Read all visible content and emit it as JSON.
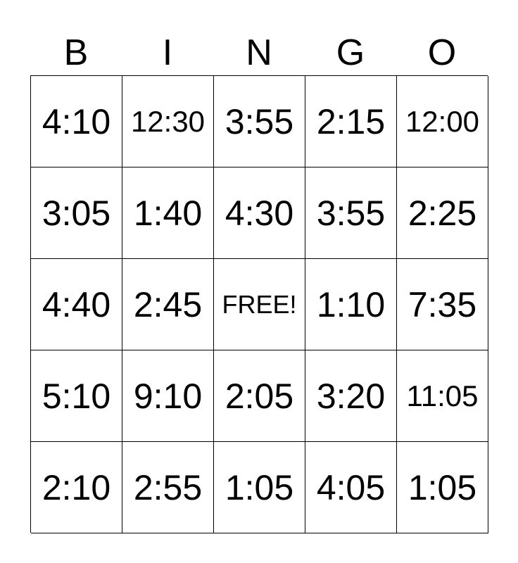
{
  "header": [
    "B",
    "I",
    "N",
    "G",
    "O"
  ],
  "cells": [
    [
      "4:10",
      "12:30",
      "3:55",
      "2:15",
      "12:00"
    ],
    [
      "3:05",
      "1:40",
      "4:30",
      "3:55",
      "2:25"
    ],
    [
      "4:40",
      "2:45",
      "FREE!",
      "1:10",
      "7:35"
    ],
    [
      "5:10",
      "9:10",
      "2:05",
      "3:20",
      "11:05"
    ],
    [
      "2:10",
      "2:55",
      "1:05",
      "4:05",
      "1:05"
    ]
  ]
}
